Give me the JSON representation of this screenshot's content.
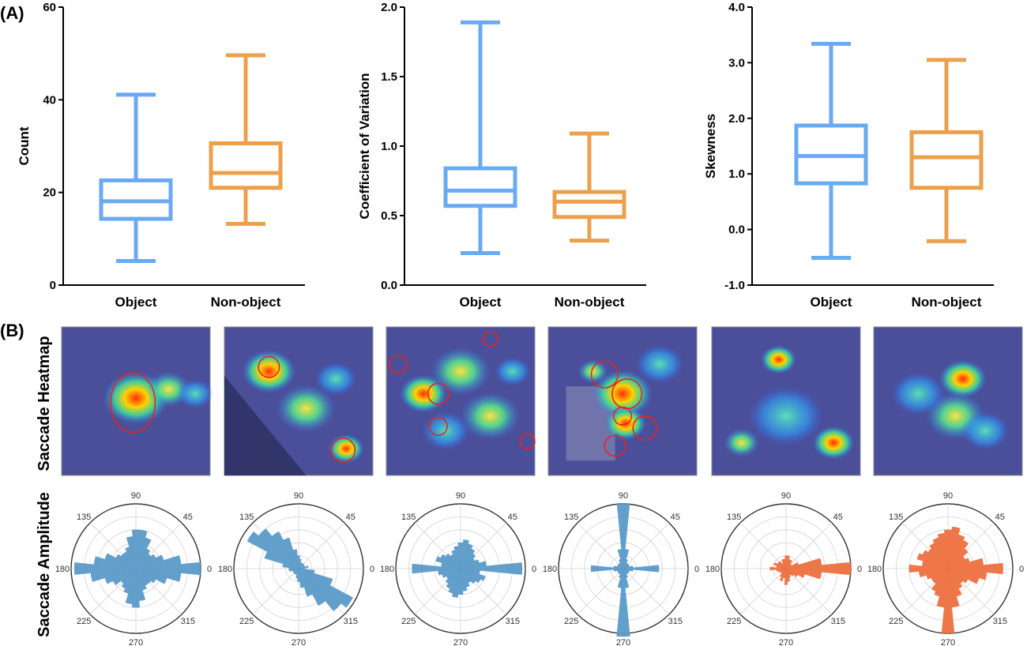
{
  "labels": {
    "panel_a": "(A)",
    "panel_b": "(B)",
    "row_heatmap": "Saccade Heatmap",
    "row_amplitude": "Saccade Amplitude"
  },
  "colors": {
    "object": "#6aaaf2",
    "nonobject": "#eda04c",
    "polar_blue": "#5b9ac9",
    "polar_orange": "#ee7041",
    "heatmap_bg": "#4b4f9a"
  },
  "chart_data": [
    {
      "type": "box",
      "title": "",
      "xlabel": "",
      "ylabel": "Count",
      "categories": [
        "Object",
        "Non-object"
      ],
      "ylim": [
        0,
        60
      ],
      "yticks": [
        "0",
        "20",
        "40",
        "60"
      ],
      "boxes": [
        {
          "name": "Object",
          "min": 5.2,
          "q1": 14.3,
          "median": 18.1,
          "q3": 22.6,
          "max": 41.1
        },
        {
          "name": "Non-object",
          "min": 13.2,
          "q1": 21.0,
          "median": 24.2,
          "q3": 30.6,
          "max": 49.6
        }
      ]
    },
    {
      "type": "box",
      "title": "",
      "xlabel": "",
      "ylabel": "Coefficient of Variation",
      "categories": [
        "Object",
        "Non-object"
      ],
      "ylim": [
        0,
        2
      ],
      "yticks": [
        "0.0",
        "0.5",
        "1.0",
        "1.5",
        "2.0"
      ],
      "boxes": [
        {
          "name": "Object",
          "min": 0.23,
          "q1": 0.57,
          "median": 0.68,
          "q3": 0.84,
          "max": 1.89
        },
        {
          "name": "Non-object",
          "min": 0.32,
          "q1": 0.49,
          "median": 0.6,
          "q3": 0.67,
          "max": 1.09
        }
      ]
    },
    {
      "type": "box",
      "title": "",
      "xlabel": "",
      "ylabel": "Skewness",
      "categories": [
        "Object",
        "Non-object"
      ],
      "ylim": [
        -1,
        4
      ],
      "yticks": [
        "-1.0",
        "0.0",
        "1.0",
        "2.0",
        "3.0",
        "4.0"
      ],
      "boxes": [
        {
          "name": "Object",
          "min": -0.51,
          "q1": 0.83,
          "median": 1.32,
          "q3": 1.87,
          "max": 3.34
        },
        {
          "name": "Non-object",
          "min": -0.21,
          "q1": 0.75,
          "median": 1.3,
          "q3": 1.75,
          "max": 3.05
        }
      ]
    },
    {
      "type": "polar-histogram",
      "angle_labels": [
        "0",
        "45",
        "90",
        "135",
        "180",
        "225",
        "270",
        "315"
      ],
      "color": "blue",
      "values": [
        1.0,
        0.7,
        0.45,
        0.35,
        0.3,
        0.35,
        0.5,
        0.6,
        0.6,
        0.5,
        0.35,
        0.3,
        0.3,
        0.35,
        0.5,
        0.65,
        0.95,
        0.7,
        0.5,
        0.4,
        0.3,
        0.35,
        0.4,
        0.55,
        0.6,
        0.5,
        0.35,
        0.3,
        0.3,
        0.35,
        0.5,
        0.7
      ]
    },
    {
      "type": "polar-histogram",
      "angle_labels": [
        "0",
        "45",
        "90",
        "135",
        "180",
        "225",
        "270",
        "315"
      ],
      "color": "blue",
      "values": [
        0.1,
        0.15,
        0.1,
        0.1,
        0.1,
        0.1,
        0.1,
        0.15,
        0.2,
        0.3,
        0.5,
        0.65,
        0.8,
        0.9,
        0.55,
        0.25,
        0.15,
        0.15,
        0.1,
        0.1,
        0.1,
        0.1,
        0.1,
        0.15,
        0.2,
        0.3,
        0.45,
        0.65,
        0.85,
        0.95,
        0.55,
        0.25
      ]
    },
    {
      "type": "polar-histogram",
      "angle_labels": [
        "0",
        "45",
        "90",
        "135",
        "180",
        "225",
        "270",
        "315"
      ],
      "color": "blue",
      "values": [
        0.95,
        0.4,
        0.3,
        0.25,
        0.3,
        0.35,
        0.4,
        0.45,
        0.4,
        0.35,
        0.3,
        0.25,
        0.3,
        0.35,
        0.4,
        0.3,
        0.75,
        0.35,
        0.3,
        0.25,
        0.3,
        0.35,
        0.4,
        0.45,
        0.4,
        0.35,
        0.3,
        0.25,
        0.3,
        0.35,
        0.4,
        0.3
      ]
    },
    {
      "type": "polar-histogram",
      "angle_labels": [
        "0",
        "45",
        "90",
        "135",
        "180",
        "225",
        "270",
        "315"
      ],
      "color": "blue",
      "values": [
        0.55,
        0.15,
        0.1,
        0.1,
        0.1,
        0.1,
        0.15,
        0.3,
        1.0,
        0.3,
        0.15,
        0.1,
        0.1,
        0.1,
        0.1,
        0.15,
        0.5,
        0.15,
        0.1,
        0.1,
        0.1,
        0.1,
        0.15,
        0.3,
        1.05,
        0.3,
        0.15,
        0.1,
        0.1,
        0.1,
        0.1,
        0.15
      ]
    },
    {
      "type": "polar-histogram",
      "angle_labels": [
        "0",
        "45",
        "90",
        "135",
        "180",
        "225",
        "270",
        "315"
      ],
      "color": "orange",
      "values": [
        1.0,
        0.55,
        0.2,
        0.1,
        0.1,
        0.15,
        0.15,
        0.2,
        0.2,
        0.15,
        0.15,
        0.1,
        0.15,
        0.15,
        0.2,
        0.15,
        0.25,
        0.15,
        0.12,
        0.1,
        0.1,
        0.15,
        0.2,
        0.15,
        0.25,
        0.2,
        0.15,
        0.12,
        0.15,
        0.2,
        0.3,
        0.55
      ]
    },
    {
      "type": "polar-histogram",
      "angle_labels": [
        "0",
        "45",
        "90",
        "135",
        "180",
        "225",
        "270",
        "315"
      ],
      "color": "orange",
      "values": [
        0.85,
        0.55,
        0.35,
        0.3,
        0.4,
        0.5,
        0.55,
        0.65,
        0.6,
        0.55,
        0.5,
        0.45,
        0.4,
        0.45,
        0.5,
        0.4,
        0.6,
        0.45,
        0.35,
        0.3,
        0.3,
        0.4,
        0.45,
        0.6,
        1.0,
        0.6,
        0.45,
        0.35,
        0.3,
        0.35,
        0.5,
        0.6
      ]
    }
  ]
}
